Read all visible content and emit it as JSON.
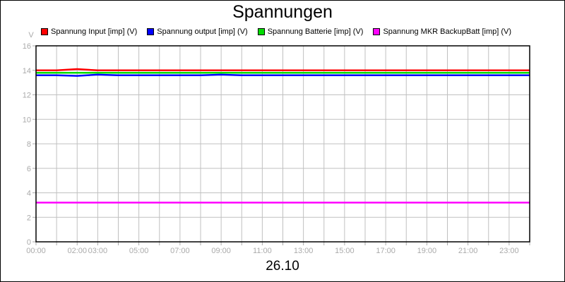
{
  "chart_data": {
    "type": "line",
    "title": "Spannungen",
    "xlabel": "26.10",
    "ylabel": "V",
    "ylim": [
      0,
      16
    ],
    "yticks": [
      0,
      2,
      4,
      6,
      8,
      10,
      12,
      14,
      16
    ],
    "xlim": [
      "00:00",
      "24:00"
    ],
    "xtick_labels": [
      "00:00",
      "02:00",
      "03:00",
      "05:00",
      "07:00",
      "09:00",
      "11:00",
      "13:00",
      "15:00",
      "17:00",
      "19:00",
      "21:00",
      "23:00"
    ],
    "grid": true,
    "legend": "top",
    "x": [
      "00:00",
      "01:00",
      "02:00",
      "03:00",
      "04:00",
      "05:00",
      "06:00",
      "07:00",
      "08:00",
      "09:00",
      "10:00",
      "11:00",
      "12:00",
      "13:00",
      "14:00",
      "15:00",
      "16:00",
      "17:00",
      "18:00",
      "19:00",
      "20:00",
      "21:00",
      "22:00",
      "23:00",
      "24:00"
    ],
    "series": [
      {
        "name": "Spannung Input [imp] (V)",
        "color": "#ff0000",
        "values": [
          14.0,
          14.0,
          14.1,
          14.0,
          14.0,
          14.0,
          14.0,
          14.0,
          14.0,
          14.0,
          14.0,
          14.0,
          14.0,
          14.0,
          14.0,
          14.0,
          14.0,
          14.0,
          14.0,
          14.0,
          14.0,
          14.0,
          14.0,
          14.0,
          14.0
        ]
      },
      {
        "name": "Spannung output [imp] (V)",
        "color": "#0000ff",
        "values": [
          13.6,
          13.6,
          13.55,
          13.65,
          13.6,
          13.6,
          13.6,
          13.6,
          13.6,
          13.65,
          13.6,
          13.6,
          13.6,
          13.6,
          13.6,
          13.6,
          13.6,
          13.6,
          13.6,
          13.6,
          13.6,
          13.6,
          13.6,
          13.6,
          13.6
        ]
      },
      {
        "name": "Spannung Batterie [imp] (V)",
        "color": "#00dd00",
        "values": [
          13.8,
          13.8,
          13.8,
          13.8,
          13.8,
          13.8,
          13.8,
          13.8,
          13.8,
          13.8,
          13.8,
          13.8,
          13.8,
          13.8,
          13.8,
          13.8,
          13.8,
          13.8,
          13.8,
          13.8,
          13.8,
          13.8,
          13.8,
          13.8,
          13.8
        ]
      },
      {
        "name": "Spannung MKR BackupBatt [imp] (V)",
        "color": "#ff00ff",
        "values": [
          3.2,
          3.2,
          3.2,
          3.2,
          3.2,
          3.2,
          3.2,
          3.2,
          3.2,
          3.2,
          3.2,
          3.2,
          3.2,
          3.2,
          3.2,
          3.2,
          3.2,
          3.2,
          3.2,
          3.2,
          3.2,
          3.2,
          3.2,
          3.2,
          3.2
        ]
      }
    ]
  }
}
